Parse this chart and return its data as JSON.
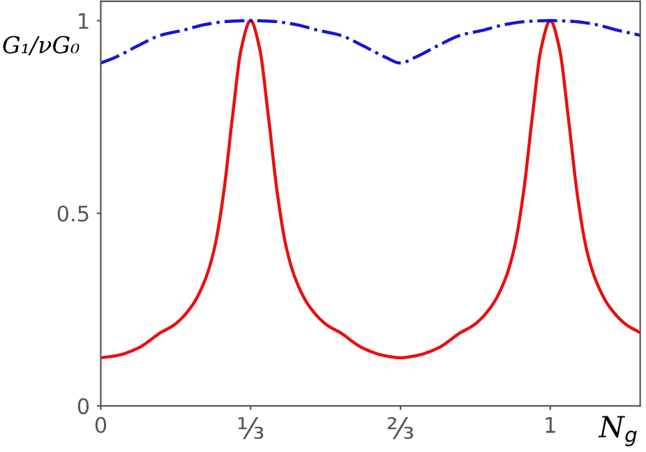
{
  "chart_data": {
    "type": "line",
    "xlabel": "N$_{g}$",
    "ylabel": "G₁/νG₀",
    "xlim": [
      0,
      1.2
    ],
    "ylim": [
      0,
      1.05
    ],
    "xticks": [
      0,
      {
        "value": 0.3333,
        "label": "⅓"
      },
      {
        "value": 0.6667,
        "label": "⅔"
      },
      1
    ],
    "yticks": [
      0,
      0.5,
      1
    ],
    "grid": false,
    "legend": false,
    "series": [
      {
        "color": "#e8100e",
        "line_style": "solid",
        "x": [
          0,
          0.033,
          0.083,
          0.133,
          0.163,
          0.203,
          0.233,
          0.253,
          0.273,
          0.293,
          0.313,
          0.3333,
          0.353,
          0.373,
          0.393,
          0.413,
          0.433,
          0.463,
          0.503,
          0.533,
          0.583,
          0.633,
          0.6667,
          0.7,
          0.75,
          0.8,
          0.83,
          0.87,
          0.9,
          0.92,
          0.94,
          0.96,
          0.98,
          1,
          1.02,
          1.04,
          1.06,
          1.08,
          1.1,
          1.13,
          1.17,
          1.2
        ],
        "values": [
          0.125,
          0.13,
          0.15,
          0.19,
          0.21,
          0.26,
          0.33,
          0.41,
          0.55,
          0.75,
          0.93,
          1,
          0.93,
          0.75,
          0.55,
          0.41,
          0.33,
          0.26,
          0.21,
          0.19,
          0.15,
          0.13,
          0.125,
          0.13,
          0.15,
          0.19,
          0.21,
          0.26,
          0.33,
          0.41,
          0.55,
          0.75,
          0.93,
          1,
          0.93,
          0.75,
          0.55,
          0.41,
          0.33,
          0.26,
          0.21,
          0.19
        ]
      },
      {
        "color": "#1515d8",
        "line_style": "dashdot",
        "x": [
          0,
          0.033,
          0.083,
          0.133,
          0.183,
          0.233,
          0.283,
          0.3333,
          0.383,
          0.433,
          0.483,
          0.533,
          0.583,
          0.633,
          0.6667,
          0.7,
          0.75,
          0.8,
          0.85,
          0.9,
          0.95,
          1,
          1.05,
          1.1,
          1.15,
          1.2
        ],
        "values": [
          0.89,
          0.905,
          0.935,
          0.962,
          0.975,
          0.99,
          0.998,
          1,
          0.998,
          0.99,
          0.975,
          0.962,
          0.935,
          0.905,
          0.89,
          0.905,
          0.935,
          0.962,
          0.975,
          0.99,
          0.998,
          1,
          0.998,
          0.99,
          0.975,
          0.962
        ]
      }
    ]
  }
}
